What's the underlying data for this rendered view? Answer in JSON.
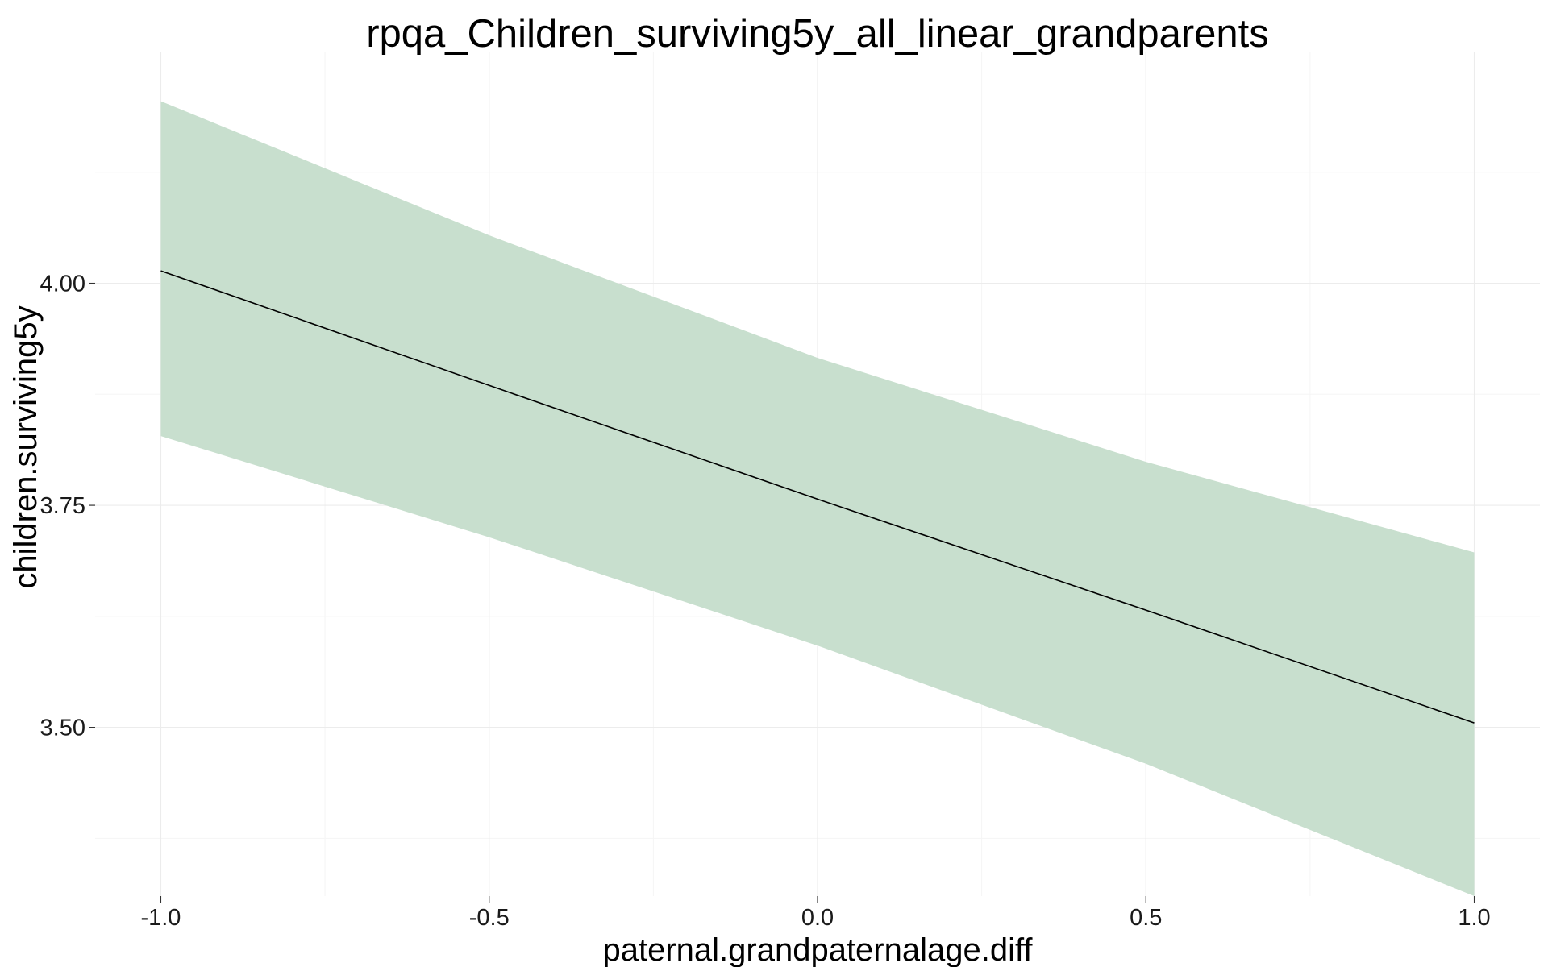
{
  "chart_data": {
    "type": "line",
    "title": "rpqa_Children_surviving5y_all_linear_grandparents",
    "xlabel": "paternal.grandpaternalage.diff",
    "ylabel": "children.surviving5y",
    "xlim": [
      -1.1,
      1.1
    ],
    "ylim": [
      3.31,
      4.26
    ],
    "x_ticks": [
      -1.0,
      -0.5,
      0.0,
      0.5,
      1.0
    ],
    "x_tick_labels": [
      "-1.0",
      "-0.5",
      "0.0",
      "0.5",
      "1.0"
    ],
    "y_ticks": [
      3.5,
      3.75,
      4.0
    ],
    "y_tick_labels": [
      "3.50",
      "3.75",
      "4.00"
    ],
    "grid": true,
    "series": [
      {
        "x": [
          -1.0,
          -0.5,
          0.0,
          0.5,
          1.0
        ],
        "y": [
          4.014,
          3.885,
          3.757,
          3.632,
          3.505
        ],
        "lower": [
          3.828,
          3.714,
          3.592,
          3.459,
          3.31
        ],
        "upper": [
          4.205,
          4.054,
          3.916,
          3.799,
          3.697
        ]
      }
    ],
    "colors": {
      "ribbon": "#c8dfce",
      "line": "#000000",
      "grid": "#ececec"
    }
  }
}
